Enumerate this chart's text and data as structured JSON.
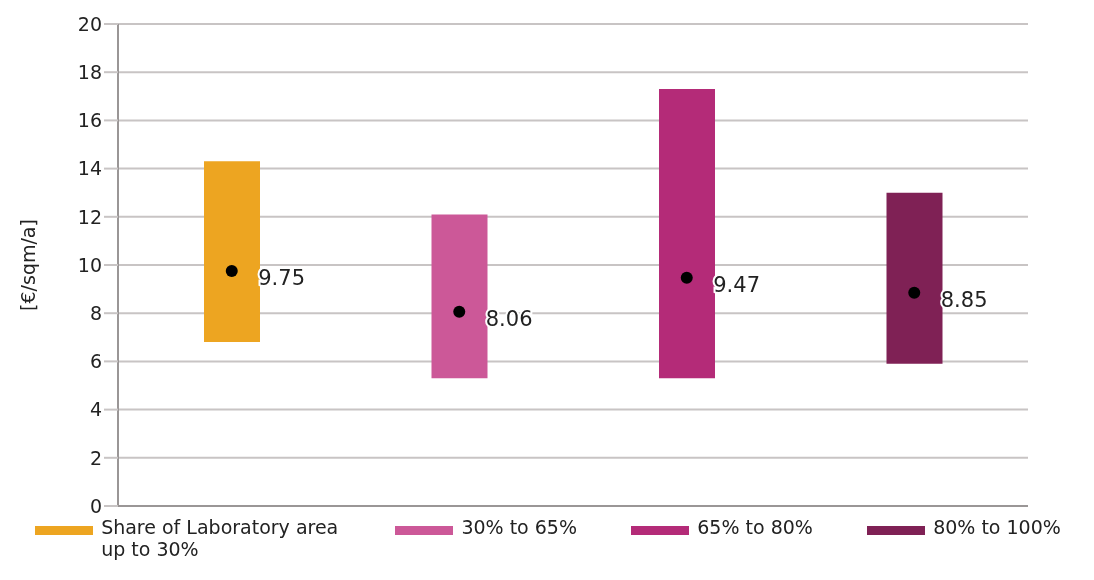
{
  "chart_data": {
    "type": "bar",
    "ylabel": "[€/sqm/a]",
    "categories": [
      null,
      null,
      null,
      null
    ],
    "series": [
      {
        "name": "Share of Laboratory area up to 30%",
        "color": "#eda521",
        "values": [
          7.5,
          null,
          null,
          null
        ],
        "base": [
          6.8,
          null,
          null,
          null
        ]
      },
      {
        "name": "30% to 65%",
        "color": "#cc5898",
        "values": [
          null,
          6.8,
          null,
          null
        ],
        "base": [
          null,
          5.3,
          null,
          null
        ]
      },
      {
        "name": "65% to 80%",
        "color": "#b42b78",
        "values": [
          null,
          null,
          12.0,
          null
        ],
        "base": [
          null,
          null,
          5.3,
          null
        ]
      },
      {
        "name": "80% to 100%",
        "color": "#7f2155",
        "values": [
          null,
          null,
          null,
          7.1
        ],
        "base": [
          null,
          null,
          null,
          5.9
        ]
      },
      {
        "type": "scatter",
        "color": "#000000",
        "marker": "circle",
        "values": [
          9.75,
          8.06,
          9.47,
          8.85
        ],
        "value_labels": [
          "9.75",
          "8.06",
          "9.47",
          "8.85"
        ]
      }
    ],
    "ylim": [
      0,
      20
    ],
    "yticks": [
      0,
      2,
      4,
      6,
      8,
      10,
      12,
      14,
      16,
      18,
      20
    ],
    "grid": "y",
    "legend": "bottom",
    "tick_labels": "y"
  }
}
